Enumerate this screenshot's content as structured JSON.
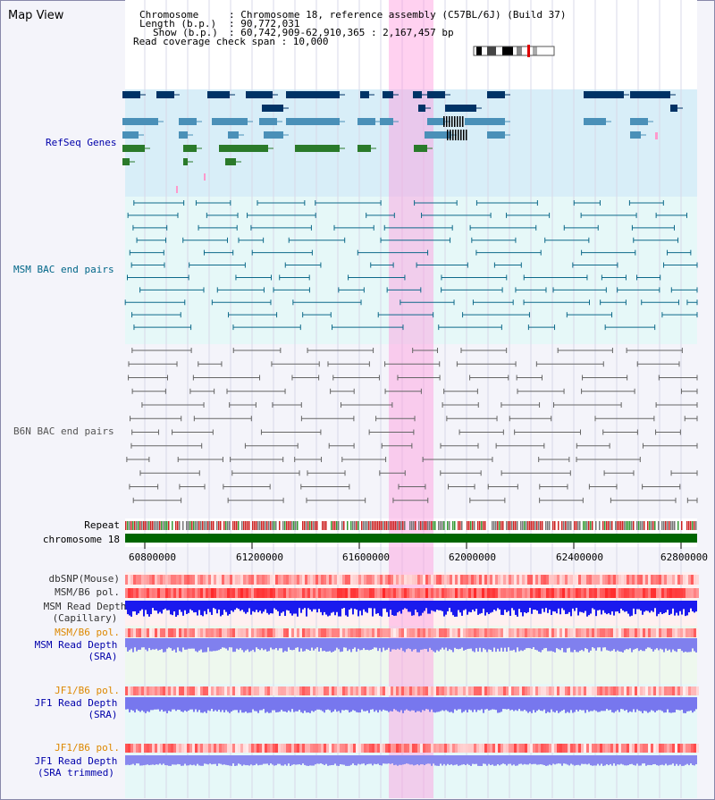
{
  "header": {
    "title": "Map View",
    "chromosome_key": "Chromosome",
    "chromosome_value": ": Chromosome 18, reference assembly (C57BL/6J) (Build 37)",
    "length_key": "Length (b.p.)",
    "length_value": ": 90,772,031",
    "show_key": "Show (b.p.)",
    "show_value": ": 60,742,909-62,910,365 : 2,167,457 bp",
    "coverage_text": "Read coverage check span : 10,000"
  },
  "tracks": {
    "refseq": "RefSeq Genes",
    "msm_bac": "MSM BAC end pairs",
    "b6n_bac": "B6N BAC end pairs",
    "repeat": "Repeat",
    "chromosome": "chromosome 18",
    "dbsnp": "dbSNP(Mouse)",
    "msm_b6_pol_1": "MSM/B6 pol.",
    "msm_depth_cap_1": "MSM Read Depth",
    "msm_depth_cap_2": "(Capillary)",
    "msm_b6_pol_2": "MSM/B6 pol.",
    "msm_depth_sra_1": "MSM Read Depth",
    "msm_depth_sra_2": "(SRA)",
    "jf1_pol_1": "JF1/B6 pol.",
    "jf1_depth_sra_1": "JF1 Read Depth",
    "jf1_depth_sra_2": "(SRA)",
    "jf1_pol_2": "JF1/B6 pol.",
    "jf1_depth_trim_1": "JF1 Read Depth",
    "jf1_depth_trim_2": "(SRA trimmed)"
  },
  "axis": {
    "ticks": [
      "60800000",
      "61200000",
      "61600000",
      "62000000",
      "62400000",
      "62800000"
    ]
  },
  "colors": {
    "refseq_label": "#0000aa",
    "msm_label": "#006688",
    "b6n_label": "#555555",
    "pol_label": "#dd8800",
    "depth_label": "#0000aa",
    "highlight": "#ff99dd",
    "chromosome_bar": "#006600"
  }
}
